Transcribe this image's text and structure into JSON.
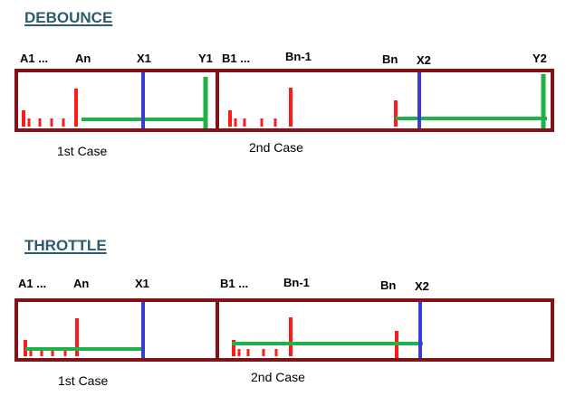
{
  "debounce": {
    "title": "DEBOUNCE",
    "labels": {
      "a1": "A1 ...",
      "an": "An",
      "x1": "X1",
      "y1": "Y1",
      "b1": "B1 ...",
      "bn1": "Bn-1",
      "bn": "Bn",
      "x2": "X2",
      "y2": "Y2"
    },
    "case1": "1st Case",
    "case2": "2nd Case"
  },
  "throttle": {
    "title": "THROTTLE",
    "labels": {
      "a1": "A1 ...",
      "an": "An",
      "x1": "X1",
      "b1": "B1 ...",
      "bn1": "Bn-1",
      "bn": "Bn",
      "x2": "X2"
    },
    "case1": "1st Case",
    "case2": "2nd Case"
  },
  "colors": {
    "frame": "#7f1318",
    "event": "#ff1a1a",
    "window": "#1fb24a",
    "marker": "#3c3cd4",
    "heading": "#2b5d6e"
  }
}
